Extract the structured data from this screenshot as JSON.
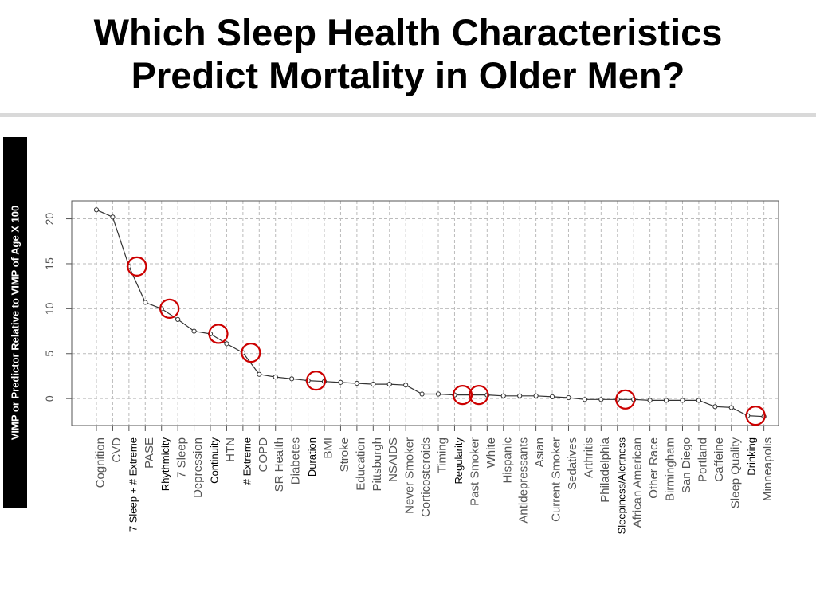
{
  "slide": {
    "title_line1": "Which Sleep Health Characteristics",
    "title_line2": "Predict Mortality in Older Men?"
  },
  "chart_data": {
    "type": "line",
    "title": "",
    "xlabel": "",
    "ylabel": "VIMP or Predictor Relative to VIMP of Age X 100",
    "ylim": [
      -3,
      22
    ],
    "yticks": [
      0,
      5,
      10,
      15,
      20
    ],
    "grid": true,
    "categories": [
      "Cognition",
      "CVD",
      "7 Sleep + # Extreme",
      "PASE",
      "Rhythmicity",
      "7 Sleep",
      "Depression",
      "Continuity",
      "HTN",
      "# Extreme",
      "COPD",
      "SR Health",
      "Diabetes",
      "Duration",
      "BMI",
      "Stroke",
      "Education",
      "Pittsburgh",
      "NSAIDS",
      "Never Smoker",
      "Corticosteroids",
      "Timing",
      "Regularity",
      "Past Smoker",
      "White",
      "Hispanic",
      "Antidepressants",
      "Asian",
      "Current Smoker",
      "Sedatives",
      "Arthritis",
      "Philadelphia",
      "Sleepiness/Alertness",
      "African American",
      "Other Race",
      "Birmingham",
      "San Diego",
      "Portland",
      "Caffeine",
      "Sleep Quality",
      "Drinking",
      "Minneapolis"
    ],
    "values": [
      21.0,
      20.2,
      14.7,
      10.7,
      10.0,
      8.8,
      7.5,
      7.2,
      6.1,
      5.1,
      2.7,
      2.4,
      2.2,
      2.0,
      1.9,
      1.8,
      1.7,
      1.6,
      1.6,
      1.5,
      0.5,
      0.5,
      0.4,
      0.4,
      0.4,
      0.3,
      0.3,
      0.3,
      0.2,
      0.1,
      -0.1,
      -0.1,
      -0.1,
      -0.1,
      -0.2,
      -0.2,
      -0.2,
      -0.2,
      -0.9,
      -1.0,
      -1.9,
      -2.0
    ],
    "black_labels": [
      "7 Sleep + # Extreme",
      "Rhythmicity",
      "Continuity",
      "# Extreme",
      "Duration",
      "Regularity",
      "Sleepiness/Alertness",
      "Drinking"
    ],
    "highlighted": [
      "7 Sleep + # Extreme",
      "Rhythmicity",
      "Continuity",
      "# Extreme",
      "Duration",
      "Regularity",
      "Past Smoker",
      "Sleepiness/Alertness",
      "Drinking"
    ],
    "colors": {
      "line": "#333333",
      "highlight": "#cc0000",
      "grid": "#bbbbbb",
      "label_gray": "#555555",
      "label_black": "#000000"
    }
  }
}
